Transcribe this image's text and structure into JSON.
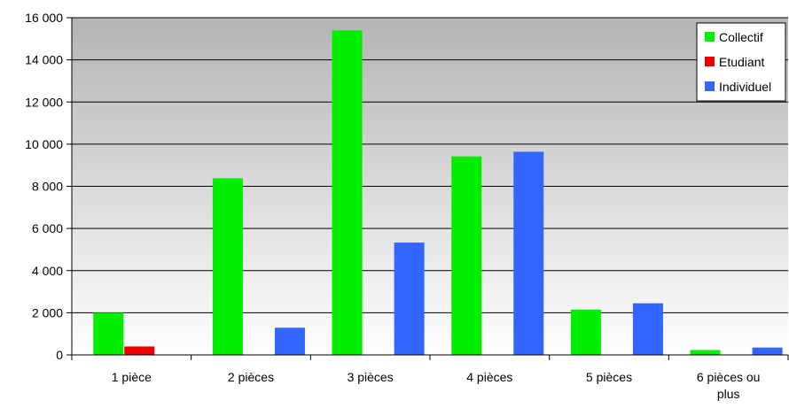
{
  "chart_data": {
    "type": "bar",
    "categories": [
      "1 pièce",
      "2 pièces",
      "3 pièces",
      "4 pièces",
      "5 pièces",
      "6 pièces ou plus"
    ],
    "series": [
      {
        "name": "Collectif",
        "color": "#00ee00",
        "values": [
          2000,
          8380,
          15400,
          9420,
          2150,
          230
        ]
      },
      {
        "name": "Etudiant",
        "color": "#ee0000",
        "values": [
          400,
          0,
          0,
          0,
          0,
          0
        ]
      },
      {
        "name": "Individuel",
        "color": "#3366ff",
        "values": [
          0,
          1290,
          5330,
          9640,
          2450,
          350
        ]
      }
    ],
    "ylim": [
      0,
      16000
    ],
    "yticks": [
      "0",
      "2 000",
      "4 000",
      "6 000",
      "8 000",
      "10 000",
      "12 000",
      "14 000",
      "16 000"
    ],
    "ytick_values": [
      0,
      2000,
      4000,
      6000,
      8000,
      10000,
      12000,
      14000,
      16000
    ],
    "grid": true,
    "legend_position": "top-right",
    "background": "gradient-gray"
  }
}
